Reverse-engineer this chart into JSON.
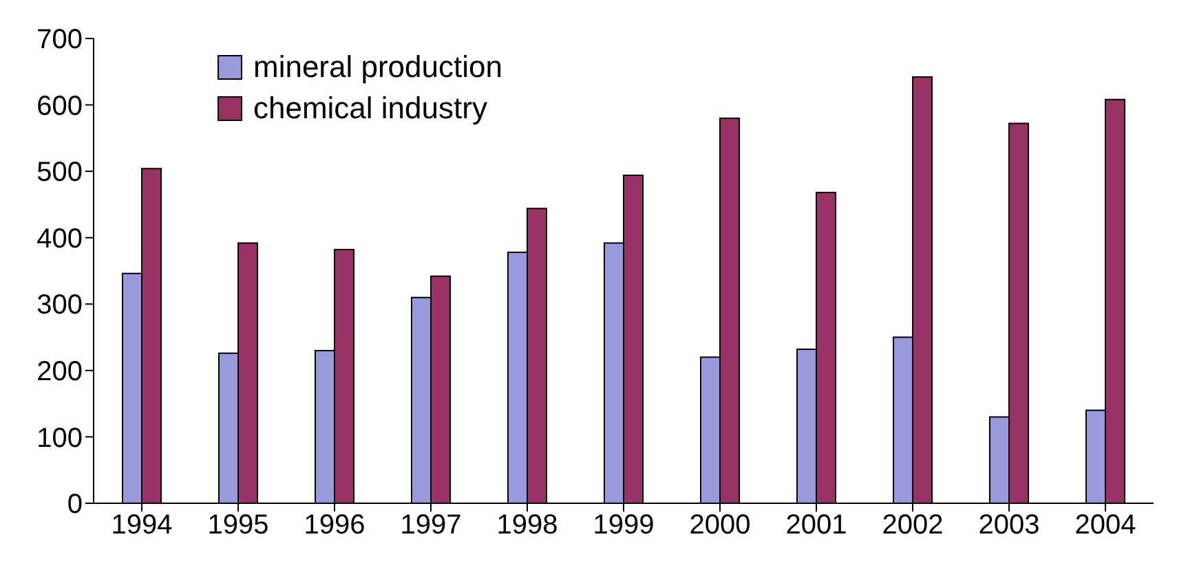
{
  "chart_data": {
    "type": "bar",
    "categories": [
      "1994",
      "1995",
      "1996",
      "1997",
      "1998",
      "1999",
      "2000",
      "2001",
      "2002",
      "2003",
      "2004"
    ],
    "series": [
      {
        "name": "mineral production",
        "color": "#9999dd",
        "values": [
          346,
          226,
          230,
          310,
          378,
          392,
          220,
          232,
          250,
          130,
          140
        ]
      },
      {
        "name": "chemical industry",
        "color": "#993366",
        "values": [
          504,
          392,
          382,
          342,
          444,
          494,
          580,
          468,
          642,
          572,
          608
        ]
      }
    ],
    "ylim": [
      0,
      700
    ],
    "yticks": [
      0,
      100,
      200,
      300,
      400,
      500,
      600,
      700
    ],
    "grid": false,
    "legend": "top left"
  }
}
